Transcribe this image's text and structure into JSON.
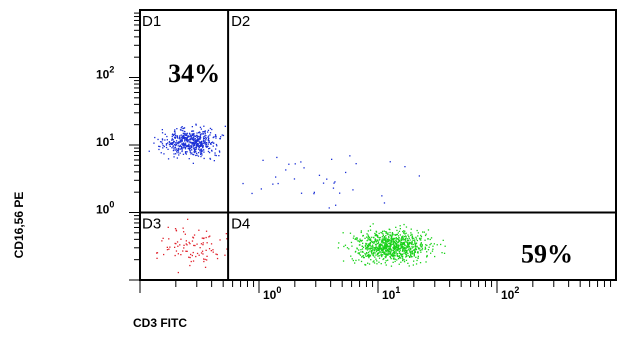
{
  "chart_data": {
    "type": "scatter",
    "title": "",
    "xlabel": "CD3 FITC",
    "ylabel": "CD16,56 PE",
    "x_scale": "log",
    "y_scale": "log",
    "xlim": [
      0.1,
      1000
    ],
    "ylim": [
      0.1,
      1000
    ],
    "x_ticks": [
      {
        "label_base": "10",
        "label_exp": "0",
        "value": 1
      },
      {
        "label_base": "10",
        "label_exp": "1",
        "value": 10
      },
      {
        "label_base": "10",
        "label_exp": "2",
        "value": 100
      }
    ],
    "y_ticks": [
      {
        "label_base": "10",
        "label_exp": "0",
        "value": 1
      },
      {
        "label_base": "10",
        "label_exp": "1",
        "value": 10
      },
      {
        "label_base": "10",
        "label_exp": "2",
        "value": 100
      }
    ],
    "gate": {
      "x": 0.55,
      "y": 1.0
    },
    "quadrants": [
      {
        "name": "D1",
        "percent": "34%"
      },
      {
        "name": "D2",
        "percent": ""
      },
      {
        "name": "D3",
        "percent": ""
      },
      {
        "name": "D4",
        "percent": "59%"
      }
    ],
    "series": [
      {
        "quadrant": "D1",
        "color": "#1a2fd6",
        "count": 520,
        "center_x": 0.27,
        "center_y": 11,
        "spread_x": 0.17,
        "spread_y": 0.14
      },
      {
        "quadrant": "D2",
        "color": "#1a2fd6",
        "count": 38,
        "center_x": 4,
        "center_y": 3,
        "spread_x": 0.5,
        "spread_y": 0.35
      },
      {
        "quadrant": "D3",
        "color": "#e0202a",
        "count": 95,
        "center_x": 0.28,
        "center_y": 0.3,
        "spread_x": 0.22,
        "spread_y": 0.22
      },
      {
        "quadrant": "D4",
        "color": "#19d119",
        "count": 900,
        "center_x": 13,
        "center_y": 0.32,
        "spread_x": 0.22,
        "spread_y": 0.16
      }
    ],
    "colors": {
      "axes": "#000000",
      "D1": "#1a2fd6",
      "D3": "#e0202a",
      "D4": "#19d119"
    }
  }
}
